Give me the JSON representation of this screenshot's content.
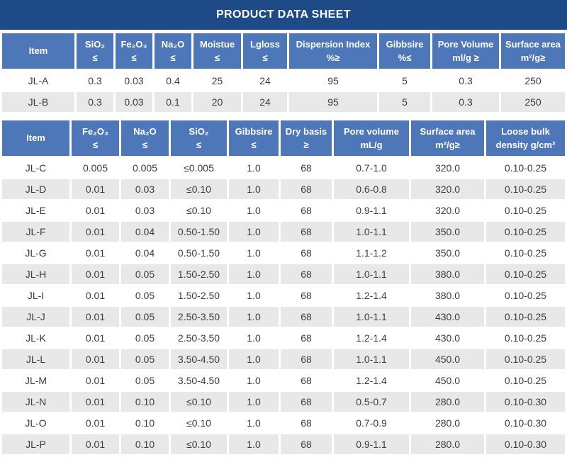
{
  "title": "PRODUCT DATA SHEET",
  "colors": {
    "title_bar": "#1e4b87",
    "header_blue": "#4d77b8",
    "row_alt_gray": "#e8e8e8",
    "body_text": "#3d3d3d",
    "header_text": "#ffffff"
  },
  "table1": {
    "columns": [
      "Item",
      "SiO₂\n≤",
      "Fe₂O₃\n≤",
      "Na₂O\n≤",
      "Moistue\n≤",
      "Lgloss\n≤",
      "Dispersion Index\n%≥",
      "Gibbsire\n%≤",
      "Pore Volume\nml/g ≥",
      "Surface area\nm²/g≥"
    ],
    "rows": [
      [
        "JL-A",
        "0.3",
        "0.03",
        "0.4",
        "25",
        "24",
        "95",
        "5",
        "0.3",
        "250"
      ],
      [
        "JL-B",
        "0.3",
        "0.03",
        "0.1",
        "20",
        "24",
        "95",
        "5",
        "0.3",
        "250"
      ]
    ]
  },
  "table2": {
    "columns": [
      "Item",
      "Fe₂O₃\n≤",
      "Na₂O\n≤",
      "SiO₂\n≤",
      "Gibbsire\n≤",
      "Dry basis\n≥",
      "Pore volume\nmL/g",
      "Surface area\nm²/g≥",
      "Loose bulk\ndensity g/cm³"
    ],
    "rows": [
      [
        "JL-C",
        "0.005",
        "0.005",
        "≤0.005",
        "1.0",
        "68",
        "0.7-1.0",
        "320.0",
        "0.10-0.25"
      ],
      [
        "JL-D",
        "0.01",
        "0.03",
        "≤0.10",
        "1.0",
        "68",
        "0.6-0.8",
        "320.0",
        "0.10-0.25"
      ],
      [
        "JL-E",
        "0.01",
        "0.03",
        "≤0.10",
        "1.0",
        "68",
        "0.9-1.1",
        "320.0",
        "0.10-0.25"
      ],
      [
        "JL-F",
        "0.01",
        "0.04",
        "0.50-1.50",
        "1.0",
        "68",
        "1.0-1.1",
        "350.0",
        "0.10-0.25"
      ],
      [
        "JL-G",
        "0.01",
        "0.04",
        "0.50-1.50",
        "1.0",
        "68",
        "1.1-1.2",
        "350.0",
        "0.10-0.25"
      ],
      [
        "JL-H",
        "0.01",
        "0.05",
        "1.50-2.50",
        "1.0",
        "68",
        "1.0-1.1",
        "380.0",
        "0.10-0.25"
      ],
      [
        "JL-I",
        "0.01",
        "0.05",
        "1.50-2.50",
        "1.0",
        "68",
        "1.2-1.4",
        "380.0",
        "0.10-0.25"
      ],
      [
        "JL-J",
        "0.01",
        "0.05",
        "2.50-3.50",
        "1.0",
        "68",
        "1.0-1.1",
        "430.0",
        "0.10-0.25"
      ],
      [
        "JL-K",
        "0.01",
        "0.05",
        "2.50-3.50",
        "1.0",
        "68",
        "1.2-1.4",
        "430.0",
        "0.10-0.25"
      ],
      [
        "JL-L",
        "0.01",
        "0.05",
        "3.50-4.50",
        "1.0",
        "68",
        "1.0-1.1",
        "450.0",
        "0.10-0.25"
      ],
      [
        "JL-M",
        "0.01",
        "0.05",
        "3.50-4.50",
        "1.0",
        "68",
        "1.2-1.4",
        "450.0",
        "0.10-0.25"
      ],
      [
        "JL-N",
        "0.01",
        "0.10",
        "≤0.10",
        "1.0",
        "68",
        "0.5-0.7",
        "280.0",
        "0.10-0.30"
      ],
      [
        "JL-O",
        "0.01",
        "0.10",
        "≤0.10",
        "1.0",
        "68",
        "0.7-0.9",
        "280.0",
        "0.10-0.30"
      ],
      [
        "JL-P",
        "0.01",
        "0.10",
        "≤0.10",
        "1.0",
        "68",
        "0.9-1.1",
        "280.0",
        "0.10-0.30"
      ]
    ]
  }
}
